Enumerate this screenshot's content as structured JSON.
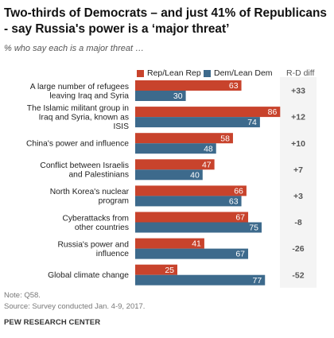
{
  "title": "Two-thirds of Democrats – and just 41% of Republicans - say Russia's power is a ‘major threat’",
  "subtitle": "% who say each is a major threat …",
  "legend": {
    "rep_label": "Rep/Lean Rep",
    "dem_label": "Dem/Lean Dem",
    "diff_label": "R-D diff"
  },
  "colors": {
    "rep": "#c8432c",
    "dem": "#3d6a8c"
  },
  "chart_data": {
    "type": "bar",
    "orientation": "horizontal",
    "categories": [
      [
        "A large number of refugees",
        "leaving Iraq and Syria"
      ],
      [
        "The Islamic militant group in",
        "Iraq and Syria, known as",
        "ISIS"
      ],
      [
        "China's power and influence"
      ],
      [
        "Conflict between Israelis",
        "and Palestinians"
      ],
      [
        "North Korea's nuclear",
        "program"
      ],
      [
        "Cyberattacks from",
        "other countries"
      ],
      [
        "Russia's power and",
        "influence"
      ],
      [
        "Global climate change"
      ]
    ],
    "series": [
      {
        "name": "Rep/Lean Rep",
        "values": [
          63,
          86,
          58,
          47,
          66,
          67,
          41,
          25
        ]
      },
      {
        "name": "Dem/Lean Dem",
        "values": [
          30,
          74,
          48,
          40,
          63,
          75,
          67,
          77
        ]
      }
    ],
    "diff": [
      "+33",
      "+12",
      "+10",
      "+7",
      "+3",
      "-8",
      "-26",
      "-52"
    ],
    "xlim": [
      0,
      100
    ]
  },
  "footer": {
    "note": "Note: Q58.",
    "source": "Source: Survey conducted Jan. 4-9, 2017.",
    "org": "PEW RESEARCH CENTER"
  }
}
